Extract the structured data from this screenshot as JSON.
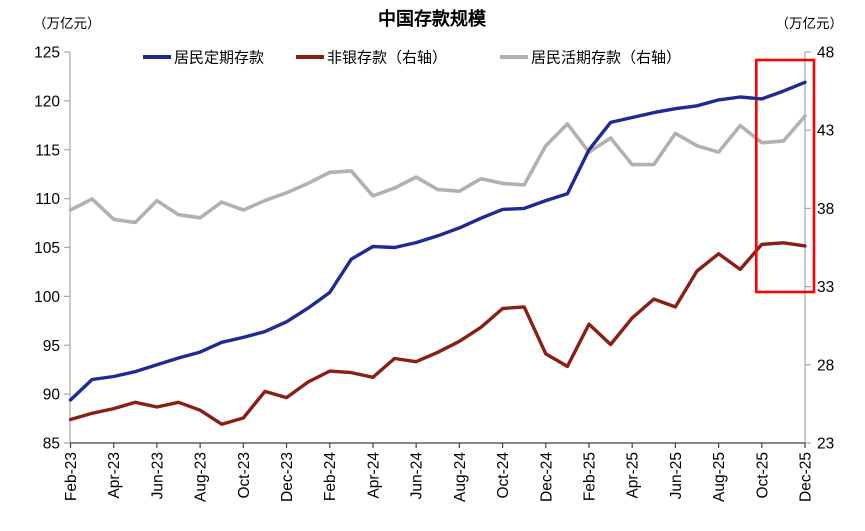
{
  "title": "中国存款规模",
  "left_axis": {
    "unit": "（万亿元）",
    "ticks": [
      125,
      120,
      115,
      110,
      105,
      100,
      95,
      90,
      85
    ]
  },
  "right_axis": {
    "unit": "（万亿元）",
    "ticks": [
      48,
      43,
      38,
      33,
      28,
      23
    ]
  },
  "legend": [
    {
      "label": "居民定期存款",
      "color": "#1f2b94"
    },
    {
      "label": "非银存款（右轴）",
      "color": "#8a1f15"
    },
    {
      "label": "居民活期存款（右轴）",
      "color": "#b1b1b1"
    }
  ],
  "colors": {
    "blue_series": "#1f2b94",
    "red_series": "#8a1f15",
    "gray_series": "#b1b1b1",
    "highlight_box": "#fe0000",
    "side_axis": "#a6a6a6",
    "bottom_axis": "#404040"
  },
  "chart_data": {
    "type": "line",
    "x": [
      "Feb-23",
      "Mar-23",
      "Apr-23",
      "May-23",
      "Jun-23",
      "Jul-23",
      "Aug-23",
      "Sep-23",
      "Oct-23",
      "Nov-23",
      "Dec-23",
      "Jan-24",
      "Feb-24",
      "Mar-24",
      "Apr-24",
      "May-24",
      "Jun-24",
      "Jul-24",
      "Aug-24",
      "Sep-24",
      "Oct-24",
      "Nov-24",
      "Dec-24",
      "Jan-25",
      "Feb-25",
      "Mar-25",
      "Apr-25",
      "May-25",
      "Jun-25",
      "Jul-25",
      "Aug-25",
      "Sep-25",
      "Oct-25",
      "Nov-25",
      "Dec-25"
    ],
    "x_label_every": 2,
    "title": "中国存款规模",
    "left_ylim": [
      85,
      125
    ],
    "right_ylim": [
      23,
      48
    ],
    "left_tick_step": 5,
    "right_tick_step": 5,
    "grid": false,
    "legend_position": "top",
    "series": [
      {
        "name": "居民定期存款",
        "key": "resident-time-deposits",
        "axis": "left",
        "color": "#1f2b94",
        "width": 3.4,
        "values": [
          89.4,
          91.5,
          91.8,
          92.3,
          93.0,
          93.7,
          94.3,
          95.3,
          95.8,
          96.4,
          97.4,
          98.8,
          100.4,
          103.8,
          105.1,
          105.0,
          105.5,
          106.2,
          107.0,
          108.0,
          108.9,
          109.0,
          109.8,
          110.5,
          115.0,
          117.8,
          118.3,
          118.8,
          119.2,
          119.5,
          120.1,
          120.4,
          120.2,
          121.0,
          121.9
        ]
      },
      {
        "name": "非银存款（右轴）",
        "key": "non-bank-deposits",
        "axis": "right",
        "color": "#8a1f15",
        "width": 3.4,
        "values": [
          24.5,
          24.9,
          25.2,
          25.6,
          25.3,
          25.6,
          25.1,
          24.2,
          24.6,
          26.3,
          25.9,
          26.9,
          27.6,
          27.5,
          27.2,
          28.4,
          28.2,
          28.8,
          29.5,
          30.4,
          31.6,
          31.7,
          28.7,
          27.9,
          30.6,
          29.3,
          31.0,
          32.2,
          31.7,
          34.0,
          35.1,
          34.1,
          35.7,
          35.8,
          35.6
        ]
      },
      {
        "name": "居民活期存款（右轴）",
        "key": "resident-demand-deposits",
        "axis": "right",
        "color": "#b1b1b1",
        "width": 3.6,
        "values": [
          37.9,
          38.6,
          37.3,
          37.1,
          38.5,
          37.6,
          37.4,
          38.4,
          37.9,
          38.5,
          39.0,
          39.6,
          40.3,
          40.4,
          38.8,
          39.3,
          40.0,
          39.2,
          39.1,
          39.9,
          39.6,
          39.5,
          42.0,
          43.4,
          41.6,
          42.5,
          40.8,
          40.8,
          42.8,
          42.0,
          41.6,
          43.3,
          42.2,
          42.3,
          43.9
        ]
      }
    ],
    "highlight_box": {
      "from_month": "Oct-25",
      "to_month": "Dec-25",
      "color": "#fe0000"
    }
  }
}
